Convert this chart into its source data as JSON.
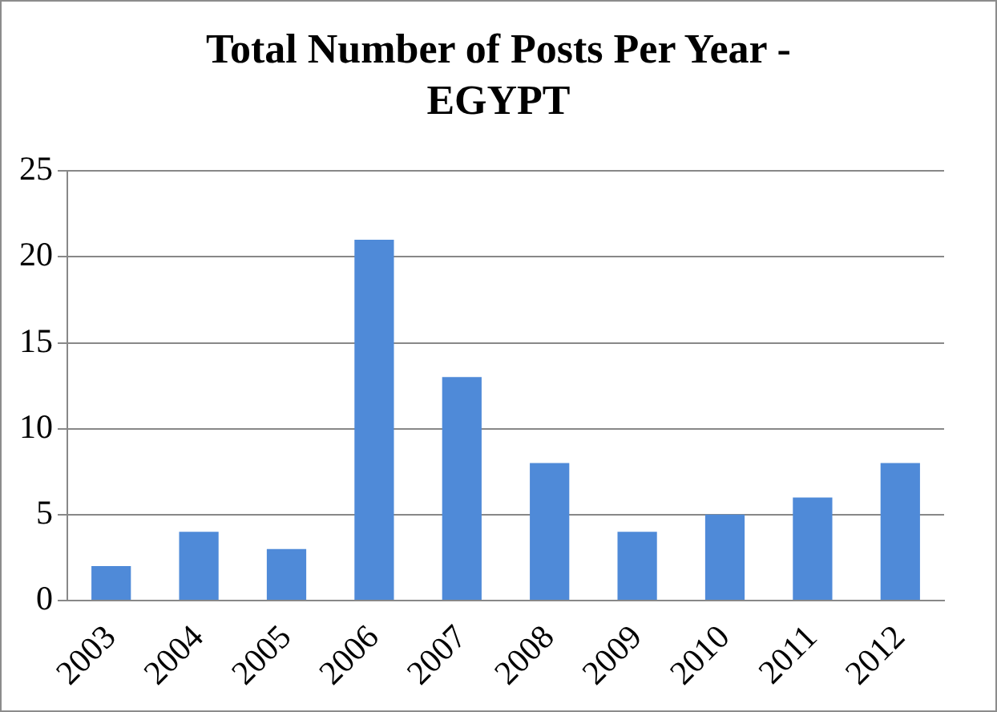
{
  "chart_data": {
    "type": "bar",
    "title": "Total Number of Posts Per Year - EGYPT",
    "categories": [
      "2003",
      "2004",
      "2005",
      "2006",
      "2007",
      "2008",
      "2009",
      "2010",
      "2011",
      "2012"
    ],
    "values": [
      2,
      4,
      3,
      21,
      13,
      8,
      4,
      5,
      6,
      8
    ],
    "color": "#4f8ad8",
    "ylim": [
      0,
      25
    ],
    "yticks": [
      0,
      5,
      10,
      15,
      20,
      25
    ],
    "grid": "y",
    "legend": false
  }
}
